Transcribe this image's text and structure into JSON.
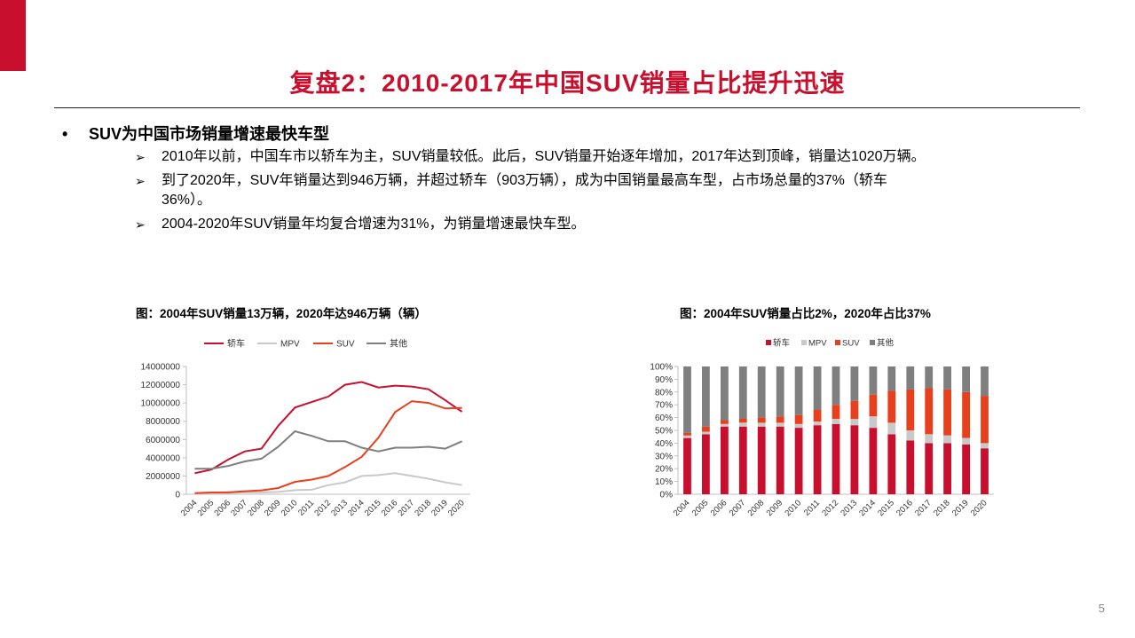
{
  "slide": {
    "title": "复盘2：2010-2017年中国SUV销量占比提升迅速",
    "page_number": "5"
  },
  "bullet": {
    "marker": "•",
    "heading": "SUV为中国市场销量增速最快车型"
  },
  "points": [
    {
      "marker": "➢",
      "text": "2010年以前，中国车市以轿车为主，SUV销量较低。此后，SUV销量开始逐年增加，2017年达到顶峰，销量达1020万辆。"
    },
    {
      "marker": "➢",
      "text_line1": "到了2020年，SUV年销量达到946万辆，并超过轿车（903万辆），成为中国销量最高车型，占市场总量的37%（轿车",
      "text_line2": "36%）。"
    },
    {
      "marker": "➢",
      "text": "2004-2020年SUV销量年均复合增速为31%，为销量增速最快车型。"
    }
  ],
  "captions": {
    "left": "图：2004年SUV销量13万辆，2020年达946万辆（辆）",
    "right": "图：2004年SUV销量占比2%，2020年占比37%"
  },
  "colors": {
    "brand": "#C8102E",
    "sedan": "#C8102E",
    "mpv": "#C9C9C9",
    "suv": "#E8401C",
    "other": "#7F7F7F"
  },
  "chart_data": [
    {
      "type": "line",
      "x": [
        "2004",
        "2005",
        "2006",
        "2007",
        "2008",
        "2009",
        "2010",
        "2011",
        "2012",
        "2013",
        "2014",
        "2015",
        "2016",
        "2017",
        "2018",
        "2019",
        "2020"
      ],
      "series": [
        {
          "name": "轿车",
          "values": [
            2300000,
            2700000,
            3800000,
            4700000,
            5000000,
            7500000,
            9500000,
            10100000,
            10700000,
            12000000,
            12300000,
            11700000,
            11900000,
            11800000,
            11500000,
            10300000,
            9030000
          ]
        },
        {
          "name": "MPV",
          "values": [
            100000,
            100000,
            150000,
            200000,
            200000,
            250000,
            450000,
            500000,
            1000000,
            1300000,
            2000000,
            2100000,
            2300000,
            2000000,
            1700000,
            1300000,
            1000000
          ]
        },
        {
          "name": "SUV",
          "values": [
            130000,
            190000,
            200000,
            330000,
            430000,
            680000,
            1360000,
            1600000,
            2000000,
            2980000,
            4100000,
            6200000,
            9000000,
            10200000,
            10000000,
            9400000,
            9460000
          ]
        },
        {
          "name": "其他",
          "values": [
            2800000,
            2800000,
            3100000,
            3600000,
            3900000,
            5200000,
            6900000,
            6400000,
            5800000,
            5800000,
            5100000,
            4700000,
            5100000,
            5100000,
            5200000,
            5000000,
            5800000
          ]
        }
      ],
      "ylim": [
        0,
        14000000
      ],
      "yticks": [
        "0",
        "2000000",
        "4000000",
        "6000000",
        "8000000",
        "10000000",
        "12000000",
        "14000000"
      ],
      "grid": false,
      "legend": "top"
    },
    {
      "type": "bar",
      "stacked": true,
      "percent": true,
      "categories": [
        "2004",
        "2005",
        "2006",
        "2007",
        "2008",
        "2009",
        "2010",
        "2011",
        "2012",
        "2013",
        "2014",
        "2015",
        "2016",
        "2017",
        "2018",
        "2019",
        "2020"
      ],
      "series": [
        {
          "name": "轿车",
          "values": [
            44,
            47,
            53,
            53,
            53,
            53,
            52,
            54,
            55,
            54,
            52,
            47,
            42,
            40,
            40,
            39,
            36
          ]
        },
        {
          "name": "MPV",
          "values": [
            2,
            2,
            2,
            3,
            3,
            3,
            3,
            3,
            4,
            5,
            9,
            9,
            8,
            7,
            6,
            5,
            4
          ]
        },
        {
          "name": "SUV",
          "values": [
            2,
            4,
            3,
            3,
            4,
            5,
            7,
            9,
            11,
            14,
            17,
            25,
            32,
            36,
            36,
            36,
            37
          ]
        },
        {
          "name": "其他",
          "values": [
            52,
            47,
            42,
            41,
            40,
            39,
            38,
            34,
            30,
            27,
            22,
            19,
            18,
            17,
            18,
            20,
            23
          ]
        }
      ],
      "ylim": [
        0,
        100
      ],
      "yticks": [
        "0%",
        "10%",
        "20%",
        "30%",
        "40%",
        "50%",
        "60%",
        "70%",
        "80%",
        "90%",
        "100%"
      ],
      "grid": false,
      "legend": "top"
    }
  ]
}
